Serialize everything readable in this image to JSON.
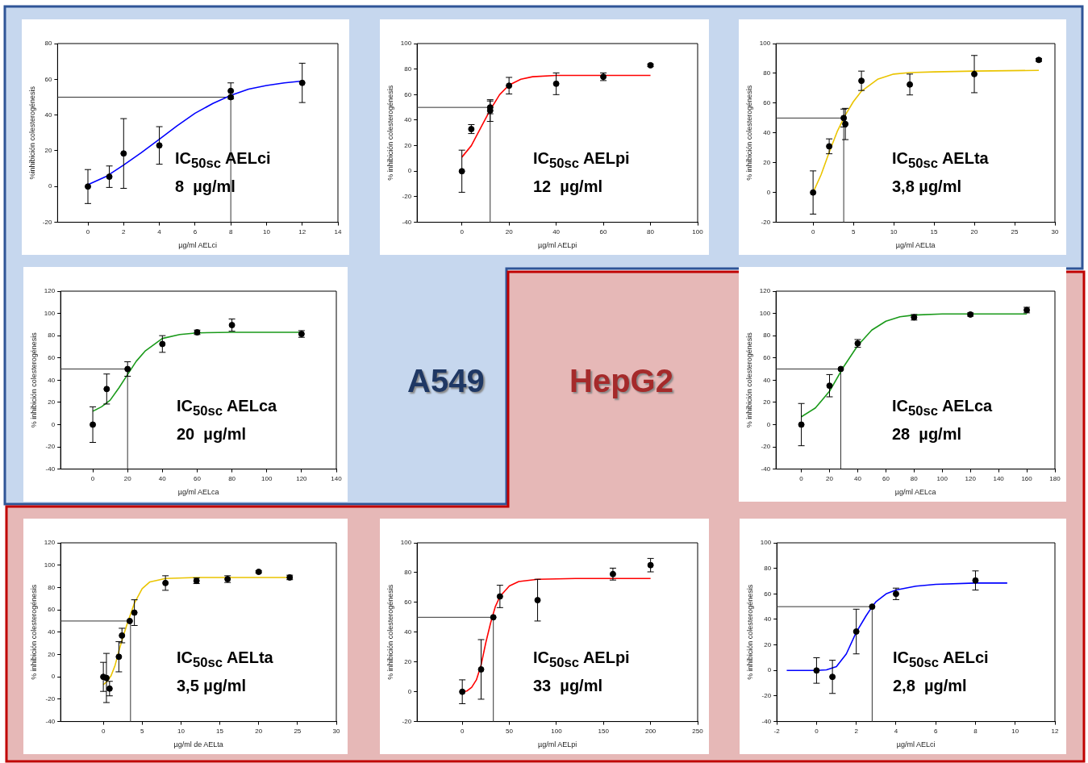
{
  "chart_data": [
    {
      "type": "scatter",
      "xlabel": "µg/ml AELci",
      "ylabel": "%inhibición colesterogénesis",
      "annotations": [
        "IC$_{50sc}$ AELci",
        "8  µg/ml"
      ],
      "xlim": [
        -1.7,
        14
      ],
      "ylim": [
        -20,
        80
      ],
      "xticks": [
        0,
        2,
        4,
        6,
        8,
        10,
        12,
        14
      ],
      "yticks": [
        -20,
        0,
        20,
        40,
        60,
        80
      ],
      "ref_lines": [
        {
          "axis": "y",
          "value": 50
        },
        {
          "axis": "x",
          "value": 8
        }
      ],
      "series": [
        {
          "type": "scatter",
          "marker": "circle",
          "color": "#000000",
          "x": [
            0,
            1.2,
            2,
            4,
            8,
            8,
            12
          ],
          "values": [
            0,
            5.5,
            18.5,
            23,
            53.5,
            50,
            58
          ],
          "errors": [
            9.5,
            6,
            19.5,
            10.5,
            4.5,
            null,
            11
          ]
        },
        {
          "type": "line",
          "marker": "none",
          "color": "#0000ff",
          "x": [
            0,
            1,
            2,
            3,
            4,
            5,
            6,
            7,
            8,
            9,
            10,
            11,
            12
          ],
          "values": [
            1,
            5.5,
            12,
            19,
            26.5,
            34,
            41,
            46.5,
            51,
            54.5,
            56.5,
            58,
            59
          ]
        }
      ]
    },
    {
      "type": "scatter",
      "xlabel": "µg/ml AELpi",
      "ylabel": "% inhibición colesterogénesis",
      "annotations": [
        "IC$_{50sc}$ AELpi",
        "12  µg/ml"
      ],
      "xlim": [
        -19,
        100
      ],
      "ylim": [
        -40,
        100
      ],
      "xticks": [
        0,
        20,
        40,
        60,
        80,
        100
      ],
      "yticks": [
        -40,
        -20,
        0,
        20,
        40,
        60,
        80,
        100
      ],
      "ref_lines": [
        {
          "axis": "y",
          "value": 50
        },
        {
          "axis": "x",
          "value": 12
        }
      ],
      "series": [
        {
          "type": "scatter",
          "marker": "circle",
          "color": "#000000",
          "x": [
            0,
            4,
            12,
            12,
            20,
            40,
            60,
            80
          ],
          "values": [
            0,
            33,
            50,
            47.5,
            67,
            68.5,
            74,
            83
          ],
          "errors": [
            16.5,
            3.5,
            5,
            8.5,
            6.5,
            8.5,
            3,
            1
          ]
        },
        {
          "type": "line",
          "marker": "none",
          "color": "#ff0000",
          "x": [
            0,
            4,
            8,
            12,
            16,
            20,
            25,
            30,
            40,
            60,
            80
          ],
          "values": [
            11,
            20,
            34,
            48,
            60,
            67.5,
            72,
            74,
            75,
            75,
            75
          ]
        }
      ]
    },
    {
      "type": "scatter",
      "xlabel": "µg/ml AELta",
      "ylabel": "% inhibición colesterogénesis",
      "annotations": [
        "IC$_{50sc}$ AELta",
        "3,8 µg/ml"
      ],
      "xlim": [
        -4.6,
        30
      ],
      "ylim": [
        -20,
        100
      ],
      "xticks": [
        0,
        5,
        10,
        15,
        20,
        25,
        30
      ],
      "yticks": [
        -20,
        0,
        20,
        40,
        60,
        80,
        100
      ],
      "ref_lines": [
        {
          "axis": "y",
          "value": 50
        },
        {
          "axis": "x",
          "value": 3.8
        }
      ],
      "series": [
        {
          "type": "scatter",
          "marker": "circle",
          "color": "#000000",
          "x": [
            0,
            2,
            3.8,
            4,
            6,
            12,
            20,
            28
          ],
          "values": [
            0,
            31,
            50,
            46,
            75,
            72.5,
            79.5,
            89
          ],
          "errors": [
            14.5,
            5,
            6,
            10.5,
            6.5,
            7,
            12.5,
            1
          ]
        },
        {
          "type": "line",
          "marker": "none",
          "color": "#eac400",
          "x": [
            0,
            1,
            2,
            3,
            4,
            5,
            6,
            8,
            10,
            12,
            15,
            20,
            28
          ],
          "values": [
            0,
            12,
            27,
            41,
            52,
            61,
            68,
            76,
            79.5,
            80.5,
            81,
            81.5,
            82
          ]
        }
      ]
    },
    {
      "type": "scatter",
      "xlabel": "µg/ml AELca",
      "ylabel": "% inhibición colesterogénesis",
      "annotations": [
        "IC$_{50sc}$ AELca",
        "20  µg/ml"
      ],
      "xlim": [
        -18.5,
        140
      ],
      "ylim": [
        -40,
        120
      ],
      "xticks": [
        0,
        20,
        40,
        60,
        80,
        100,
        120,
        140
      ],
      "yticks": [
        -40,
        -20,
        0,
        20,
        40,
        60,
        80,
        100,
        120
      ],
      "ref_lines": [
        {
          "axis": "y",
          "value": 50
        },
        {
          "axis": "x",
          "value": 20
        }
      ],
      "series": [
        {
          "type": "scatter",
          "marker": "circle",
          "color": "#000000",
          "x": [
            0,
            8,
            20,
            40,
            60,
            80,
            120
          ],
          "values": [
            0,
            32,
            50,
            72.5,
            83,
            89.5,
            81.5
          ],
          "errors": [
            16,
            13.5,
            6.5,
            7.5,
            2,
            5.5,
            3
          ]
        },
        {
          "type": "line",
          "marker": "none",
          "color": "#1a9a1a",
          "x": [
            0,
            5,
            10,
            15,
            20,
            25,
            30,
            40,
            50,
            60,
            80,
            120
          ],
          "values": [
            12,
            16,
            22,
            33,
            45,
            57,
            66,
            77.5,
            81,
            82.5,
            83,
            83
          ]
        }
      ]
    },
    {
      "type": "scatter",
      "xlabel": "µg/ml AELca",
      "ylabel": "% inhibición colesterogénesis",
      "annotations": [
        "IC$_{50sc}$ AELca",
        "28  µg/ml"
      ],
      "xlim": [
        -18,
        180
      ],
      "ylim": [
        -40,
        120
      ],
      "xticks": [
        0,
        20,
        40,
        60,
        80,
        100,
        120,
        140,
        160,
        180
      ],
      "yticks": [
        -40,
        -20,
        0,
        20,
        40,
        60,
        80,
        100,
        120
      ],
      "ref_lines": [
        {
          "axis": "y",
          "value": 50
        },
        {
          "axis": "x",
          "value": 28
        }
      ],
      "series": [
        {
          "type": "scatter",
          "marker": "circle",
          "color": "#000000",
          "x": [
            0,
            20,
            28,
            40,
            80,
            120,
            160
          ],
          "values": [
            0,
            35,
            50,
            73,
            96.5,
            99,
            103
          ],
          "errors": [
            19,
            10,
            null,
            3.5,
            2.5,
            1.5,
            2.5
          ]
        },
        {
          "type": "line",
          "marker": "none",
          "color": "#1a9a1a",
          "x": [
            0,
            10,
            20,
            30,
            40,
            50,
            60,
            70,
            80,
            100,
            120,
            160
          ],
          "values": [
            7,
            15,
            30,
            52,
            71,
            85,
            93,
            97,
            98.5,
            99.5,
            99.5,
            99.5
          ]
        }
      ]
    },
    {
      "type": "scatter",
      "xlabel": "µg/ml de AELta",
      "ylabel": "% inhibición colesterogénesis",
      "annotations": [
        "IC$_{50sc}$ AELta",
        "3,5 µg/ml"
      ],
      "xlim": [
        -5.5,
        30
      ],
      "ylim": [
        -40,
        120
      ],
      "xticks": [
        0,
        5,
        10,
        15,
        20,
        25,
        30
      ],
      "yticks": [
        -40,
        -20,
        0,
        20,
        40,
        60,
        80,
        100,
        120
      ],
      "ref_lines": [
        {
          "axis": "y",
          "value": 50
        },
        {
          "axis": "x",
          "value": 3.5
        }
      ],
      "series": [
        {
          "type": "scatter",
          "marker": "circle",
          "color": "#000000",
          "x": [
            0,
            0.4,
            0.8,
            2,
            2.4,
            3.4,
            4,
            8,
            12,
            16,
            20,
            24
          ],
          "values": [
            0,
            -1,
            -10.5,
            18,
            37,
            50,
            57.5,
            84,
            86,
            87.5,
            94,
            89
          ],
          "errors": [
            13,
            22,
            6.5,
            13.5,
            6.5,
            null,
            11.5,
            6.5,
            2.5,
            3,
            1,
            2
          ]
        },
        {
          "type": "line",
          "marker": "none",
          "color": "#eac400",
          "x": [
            0,
            0.5,
            1,
            1.5,
            2,
            2.5,
            3,
            3.5,
            4,
            5,
            6,
            8,
            12,
            16,
            24
          ],
          "values": [
            -7,
            -4,
            1,
            10,
            23,
            35,
            46,
            56,
            66,
            79,
            85,
            88,
            89,
            89,
            89
          ]
        }
      ]
    },
    {
      "type": "scatter",
      "xlabel": "µg/ml AELpi",
      "ylabel": "% inhibición colesterogénesis",
      "annotations": [
        "IC$_{50sc}$ AELpi",
        "33  µg/ml"
      ],
      "xlim": [
        -48,
        250
      ],
      "ylim": [
        -20,
        100
      ],
      "xticks": [
        0,
        50,
        100,
        150,
        200,
        250
      ],
      "yticks": [
        -20,
        0,
        20,
        40,
        60,
        80,
        100
      ],
      "ref_lines": [
        {
          "axis": "y",
          "value": 50
        },
        {
          "axis": "x",
          "value": 33
        }
      ],
      "series": [
        {
          "type": "scatter",
          "marker": "circle",
          "color": "#000000",
          "x": [
            0,
            20,
            33,
            40,
            80,
            160,
            200
          ],
          "values": [
            0,
            15,
            50,
            64,
            61.5,
            79,
            85
          ],
          "errors": [
            8,
            20,
            null,
            7.5,
            14,
            4,
            4.5
          ]
        },
        {
          "type": "line",
          "marker": "none",
          "color": "#ff0000",
          "x": [
            0,
            5,
            10,
            15,
            20,
            25,
            30,
            35,
            40,
            50,
            60,
            80,
            120,
            200
          ],
          "values": [
            0,
            0.5,
            3,
            8,
            18,
            33,
            46,
            57,
            64,
            71,
            74,
            75.5,
            76,
            76
          ]
        }
      ]
    },
    {
      "type": "scatter",
      "xlabel": "µg/ml AELci",
      "ylabel": "% inhibición colesterogénesis",
      "annotations": [
        "IC$_{50sc}$ AELci",
        "2,8  µg/ml"
      ],
      "xlim": [
        -2,
        12
      ],
      "ylim": [
        -40,
        100
      ],
      "xticks": [
        -2,
        0,
        2,
        4,
        6,
        8,
        10,
        12
      ],
      "yticks": [
        -40,
        -20,
        0,
        20,
        40,
        60,
        80,
        100
      ],
      "ref_lines": [
        {
          "axis": "y",
          "value": 50
        },
        {
          "axis": "x",
          "value": 2.8
        }
      ],
      "series": [
        {
          "type": "scatter",
          "marker": "circle",
          "color": "#000000",
          "x": [
            0,
            0.8,
            2,
            2.8,
            4,
            8
          ],
          "values": [
            0,
            -5,
            30.5,
            50,
            60,
            70.5
          ],
          "errors": [
            10,
            13,
            17.5,
            null,
            4.5,
            7.5
          ]
        },
        {
          "type": "line",
          "marker": "none",
          "color": "#0000ff",
          "x": [
            -1.5,
            0,
            0.5,
            1,
            1.5,
            2,
            2.5,
            2.8,
            3,
            3.5,
            4,
            5,
            6,
            8,
            9.6
          ],
          "values": [
            0,
            0,
            0.5,
            3,
            13,
            30,
            43,
            50,
            54,
            60,
            63,
            66,
            67.5,
            68.5,
            68.5
          ]
        }
      ]
    },
    {
      "type": "other",
      "annotations": [
        "A549",
        "HepG2"
      ]
    }
  ]
}
